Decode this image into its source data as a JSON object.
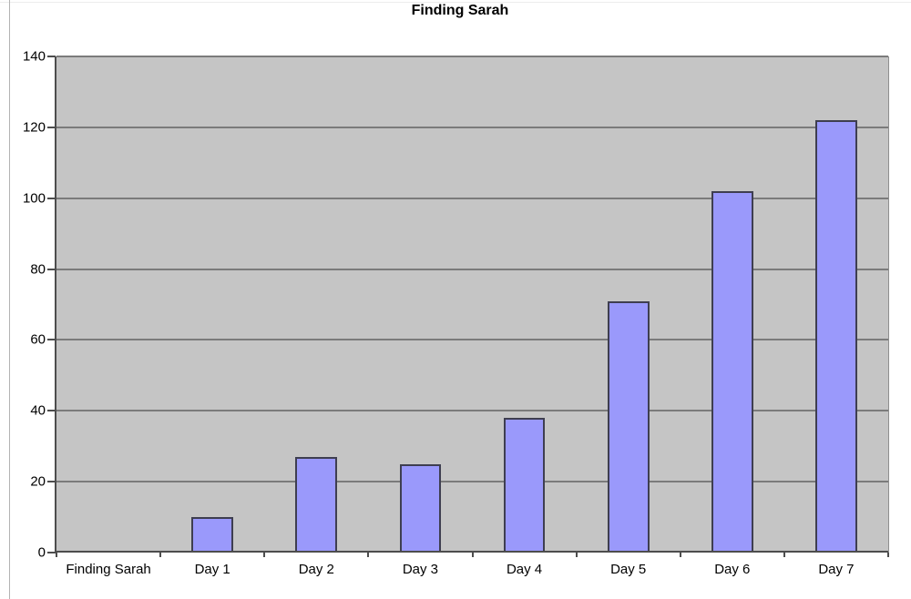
{
  "chart_data": {
    "type": "bar",
    "title": "Finding Sarah",
    "categories": [
      "Finding Sarah",
      "Day 1",
      "Day 2",
      "Day 3",
      "Day 4",
      "Day 5",
      "Day 6",
      "Day 7"
    ],
    "values": [
      0,
      10,
      27,
      25,
      38,
      71,
      102,
      122
    ],
    "xlabel": "",
    "ylabel": "",
    "ylim": [
      0,
      140
    ],
    "ytick_step": 20,
    "ytick_labels": [
      "0",
      "20",
      "40",
      "60",
      "80",
      "100",
      "120",
      "140"
    ],
    "grid": "horizontal",
    "legend": "none",
    "colors": {
      "bar_fill": "#9A99FB",
      "bar_border": "#3E3E50",
      "plot_background": "#C5C5C5",
      "gridline": "#7B7B7B",
      "axis": "#4D4D4D",
      "text": "#000000",
      "page_background": "#FFFFFF"
    }
  }
}
